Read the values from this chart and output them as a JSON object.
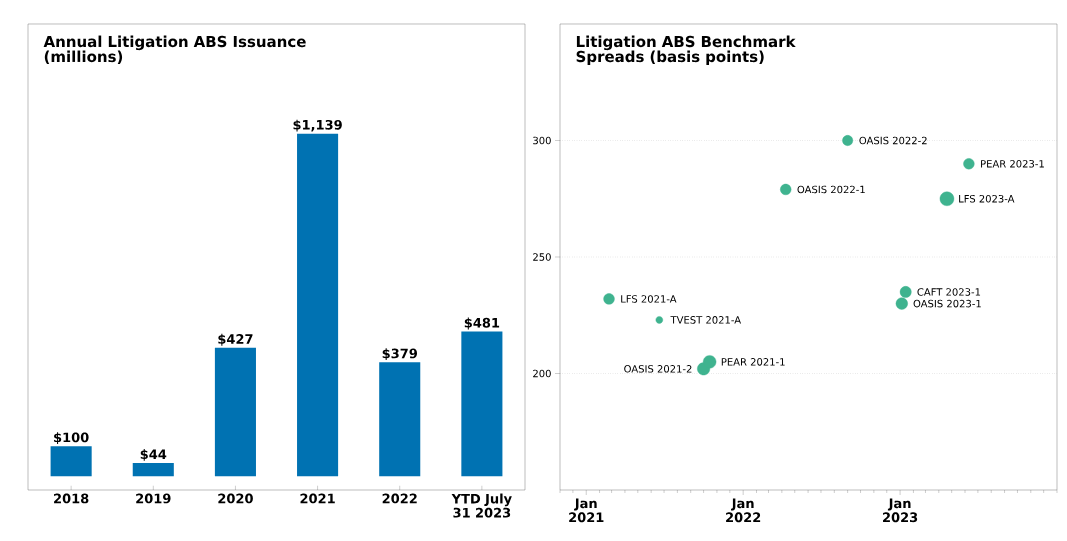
{
  "chart_data": [
    {
      "type": "bar",
      "title": "Annual Litigation ABS Issuance (millions)",
      "categories": [
        "2018",
        "2019",
        "2020",
        "2021",
        "2022",
        "YTD July 31 2023"
      ],
      "values": [
        100,
        44,
        427,
        1139,
        379,
        481
      ],
      "color": "#0072b2",
      "value_labels": [
        "$100",
        "$44",
        "$427",
        "$1,139",
        "$379",
        "$481"
      ],
      "grid": false
    },
    {
      "type": "bubble",
      "title": "Litigation ABS Benchmark Spreads (basis points)",
      "x": [
        "2021-02-23",
        "2021-06-20",
        "2021-10-01",
        "2021-10-15",
        "2022-04-10",
        "2022-09-01",
        "2023-01-14",
        "2023-01-05",
        "2023-04-20",
        "2023-06-10"
      ],
      "values": [
        232,
        223,
        202,
        205,
        279,
        300,
        235,
        230,
        275,
        290
      ],
      "sizes": [
        0.6,
        0.25,
        0.8,
        0.85,
        0.6,
        0.55,
        0.65,
        0.7,
        1,
        0.6
      ],
      "color": "#3fb38f",
      "xlim": [
        "2020-11-01",
        "2024-01-01"
      ],
      "xticks": [
        {
          "value": "2021-01-01",
          "label": "Jan 2021"
        },
        {
          "value": "2022-01-01",
          "label": "Jan 2022"
        },
        {
          "value": "2023-01-01",
          "label": "Jan 2023"
        }
      ],
      "ylim": [
        150,
        350
      ],
      "yticks": [
        200,
        250,
        300
      ],
      "grid": "y",
      "annotations": [
        {
          "text": "LFS 2021-A",
          "x": "2021-02-23",
          "y": 232
        },
        {
          "text": "TVEST 2021-A",
          "x": "2021-06-20",
          "y": 223
        },
        {
          "text": "OASIS 2021-2",
          "x": "2021-10-01",
          "y": 202
        },
        {
          "text": "PEAR 2021-1",
          "x": "2021-10-15",
          "y": 205
        },
        {
          "text": "OASIS 2022-1",
          "x": "2022-04-10",
          "y": 279
        },
        {
          "text": "OASIS 2022-2",
          "x": "2022-09-01",
          "y": 300
        },
        {
          "text": "CAFT 2023-1",
          "x": "2023-01-14",
          "y": 235
        },
        {
          "text": "OASIS 2023-1",
          "x": "2023-01-05",
          "y": 230
        },
        {
          "text": "LFS 2023-A",
          "x": "2023-04-20",
          "y": 275
        },
        {
          "text": "PEAR 2023-1",
          "x": "2023-06-10",
          "y": 290
        }
      ]
    }
  ]
}
